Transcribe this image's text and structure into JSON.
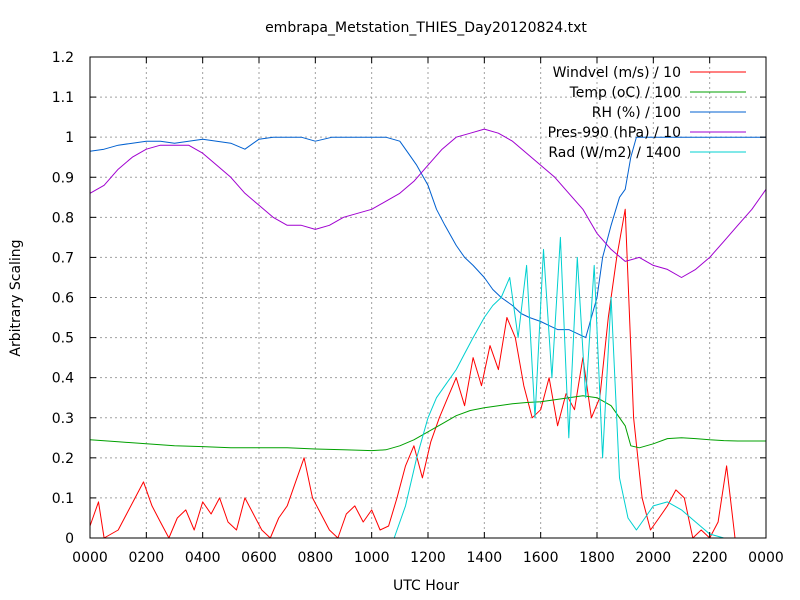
{
  "chart_data": {
    "type": "line",
    "title": "embrapa_Metstation_THIES_Day20120824.txt",
    "xlabel": "UTC Hour",
    "ylabel": "Arbitrary Scaling",
    "xlim": [
      0,
      24
    ],
    "ylim": [
      0,
      1.2
    ],
    "x_ticks": [
      "0000",
      "0200",
      "0400",
      "0600",
      "0800",
      "1000",
      "1200",
      "1400",
      "1600",
      "1800",
      "2000",
      "2200",
      "0000"
    ],
    "y_ticks": [
      "0",
      "0.1",
      "0.2",
      "0.3",
      "0.4",
      "0.5",
      "0.6",
      "0.7",
      "0.8",
      "0.9",
      "1",
      "1.1",
      "1.2"
    ],
    "grid": true,
    "legend_position": "top-right",
    "series": [
      {
        "name": "Windvel (m/s) / 10",
        "color": "#ff0000",
        "x": [
          0,
          0.3,
          0.5,
          1.0,
          1.3,
          1.6,
          1.9,
          2.2,
          2.5,
          2.8,
          3.1,
          3.4,
          3.7,
          4.0,
          4.3,
          4.6,
          4.9,
          5.2,
          5.5,
          5.8,
          6.1,
          6.4,
          6.7,
          7.0,
          7.3,
          7.6,
          7.9,
          8.2,
          8.5,
          8.8,
          9.1,
          9.4,
          9.7,
          10.0,
          10.3,
          10.6,
          10.9,
          11.2,
          11.5,
          11.8,
          12.1,
          12.4,
          12.7,
          13.0,
          13.3,
          13.6,
          13.9,
          14.2,
          14.5,
          14.8,
          15.1,
          15.4,
          15.7,
          16.0,
          16.3,
          16.6,
          16.9,
          17.2,
          17.5,
          17.8,
          18.1,
          18.4,
          18.7,
          19.0,
          19.3,
          19.6,
          19.9,
          20.2,
          20.5,
          20.8,
          21.1,
          21.4,
          21.7,
          22.0,
          22.3,
          22.6,
          22.9
        ],
        "y": [
          0.03,
          0.09,
          0.0,
          0.02,
          0.06,
          0.1,
          0.14,
          0.08,
          0.04,
          0.0,
          0.05,
          0.07,
          0.02,
          0.09,
          0.06,
          0.1,
          0.04,
          0.02,
          0.1,
          0.06,
          0.02,
          0.0,
          0.05,
          0.08,
          0.14,
          0.2,
          0.1,
          0.06,
          0.02,
          0.0,
          0.06,
          0.08,
          0.04,
          0.07,
          0.02,
          0.03,
          0.1,
          0.18,
          0.23,
          0.15,
          0.24,
          0.3,
          0.35,
          0.4,
          0.33,
          0.45,
          0.38,
          0.48,
          0.42,
          0.55,
          0.5,
          0.38,
          0.3,
          0.32,
          0.4,
          0.28,
          0.36,
          0.32,
          0.45,
          0.3,
          0.35,
          0.55,
          0.7,
          0.82,
          0.3,
          0.1,
          0.02,
          0.05,
          0.08,
          0.12,
          0.1,
          0.0,
          0.02,
          0.0,
          0.04,
          0.18,
          0.0
        ]
      },
      {
        "name": "Temp (oC) / 100",
        "color": "#00a000",
        "x": [
          0,
          1,
          2,
          3,
          4,
          5,
          6,
          7,
          8,
          9,
          10,
          10.5,
          11,
          11.5,
          12,
          12.5,
          13,
          13.5,
          14,
          14.5,
          15,
          15.5,
          16,
          16.5,
          17,
          17.5,
          18,
          18.5,
          19,
          19.2,
          19.5,
          20,
          20.5,
          21,
          21.5,
          22,
          22.5,
          23,
          23.5,
          24
        ],
        "y": [
          0.245,
          0.24,
          0.235,
          0.23,
          0.228,
          0.225,
          0.225,
          0.225,
          0.222,
          0.22,
          0.218,
          0.22,
          0.23,
          0.245,
          0.265,
          0.285,
          0.305,
          0.318,
          0.325,
          0.33,
          0.335,
          0.338,
          0.34,
          0.345,
          0.35,
          0.355,
          0.35,
          0.33,
          0.28,
          0.23,
          0.225,
          0.235,
          0.248,
          0.25,
          0.248,
          0.245,
          0.243,
          0.242,
          0.242,
          0.242
        ]
      },
      {
        "name": "RH (%) / 100",
        "color": "#0060d0",
        "x": [
          0,
          0.5,
          1,
          1.5,
          2,
          2.5,
          3,
          3.5,
          4,
          4.5,
          5,
          5.5,
          6,
          6.5,
          7,
          7.5,
          8,
          8.3,
          8.6,
          9,
          9.5,
          10,
          10.5,
          11,
          11.3,
          11.6,
          12,
          12.3,
          12.6,
          13,
          13.3,
          13.6,
          14,
          14.3,
          14.6,
          15,
          15.3,
          15.6,
          16,
          16.3,
          16.6,
          17,
          17.3,
          17.6,
          18,
          18.2,
          18.5,
          18.8,
          19,
          19.2,
          19.4,
          20,
          21,
          22,
          23,
          24
        ],
        "y": [
          0.965,
          0.97,
          0.98,
          0.985,
          0.99,
          0.99,
          0.985,
          0.99,
          0.995,
          0.99,
          0.985,
          0.97,
          0.995,
          1.0,
          1.0,
          1.0,
          0.99,
          0.995,
          1.0,
          1.0,
          1.0,
          1.0,
          1.0,
          0.99,
          0.96,
          0.93,
          0.88,
          0.82,
          0.78,
          0.73,
          0.7,
          0.68,
          0.65,
          0.62,
          0.6,
          0.58,
          0.56,
          0.55,
          0.54,
          0.53,
          0.52,
          0.52,
          0.51,
          0.5,
          0.6,
          0.7,
          0.78,
          0.85,
          0.87,
          0.95,
          1.0,
          1.0,
          1.0,
          1.0,
          1.0,
          1.0
        ]
      },
      {
        "name": "Pres-990 (hPa) / 10",
        "color": "#a000d0",
        "x": [
          0,
          0.5,
          1,
          1.5,
          2,
          2.5,
          3,
          3.5,
          4,
          4.5,
          5,
          5.5,
          6,
          6.5,
          7,
          7.5,
          8,
          8.5,
          9,
          9.5,
          10,
          10.5,
          11,
          11.5,
          12,
          12.5,
          13,
          13.5,
          14,
          14.5,
          15,
          15.5,
          16,
          16.5,
          17,
          17.5,
          18,
          18.5,
          19,
          19.5,
          20,
          20.5,
          21,
          21.5,
          22,
          22.5,
          23,
          23.5,
          24
        ],
        "y": [
          0.86,
          0.88,
          0.92,
          0.95,
          0.97,
          0.98,
          0.98,
          0.98,
          0.96,
          0.93,
          0.9,
          0.86,
          0.83,
          0.8,
          0.78,
          0.78,
          0.77,
          0.78,
          0.8,
          0.81,
          0.82,
          0.84,
          0.86,
          0.89,
          0.93,
          0.97,
          1.0,
          1.01,
          1.02,
          1.01,
          0.99,
          0.96,
          0.93,
          0.9,
          0.86,
          0.82,
          0.76,
          0.72,
          0.69,
          0.7,
          0.68,
          0.67,
          0.65,
          0.67,
          0.7,
          0.74,
          0.78,
          0.82,
          0.87
        ]
      },
      {
        "name": "Rad (W/m2) / 1400",
        "color": "#00d0d0",
        "x": [
          0,
          10.8,
          11.2,
          11.6,
          12,
          12.3,
          12.6,
          13,
          13.3,
          13.6,
          14,
          14.3,
          14.6,
          14.9,
          15.2,
          15.5,
          15.8,
          16.1,
          16.4,
          16.7,
          17,
          17.3,
          17.6,
          17.9,
          18.2,
          18.5,
          18.8,
          19.1,
          19.4,
          19.7,
          20,
          20.5,
          21,
          21.5,
          22,
          22.5,
          24
        ],
        "y": [
          0,
          0,
          0.08,
          0.2,
          0.3,
          0.35,
          0.38,
          0.42,
          0.46,
          0.5,
          0.55,
          0.58,
          0.6,
          0.65,
          0.5,
          0.68,
          0.3,
          0.72,
          0.4,
          0.75,
          0.25,
          0.7,
          0.35,
          0.68,
          0.2,
          0.6,
          0.15,
          0.05,
          0.02,
          0.05,
          0.08,
          0.09,
          0.07,
          0.04,
          0.01,
          0,
          0
        ]
      }
    ]
  }
}
